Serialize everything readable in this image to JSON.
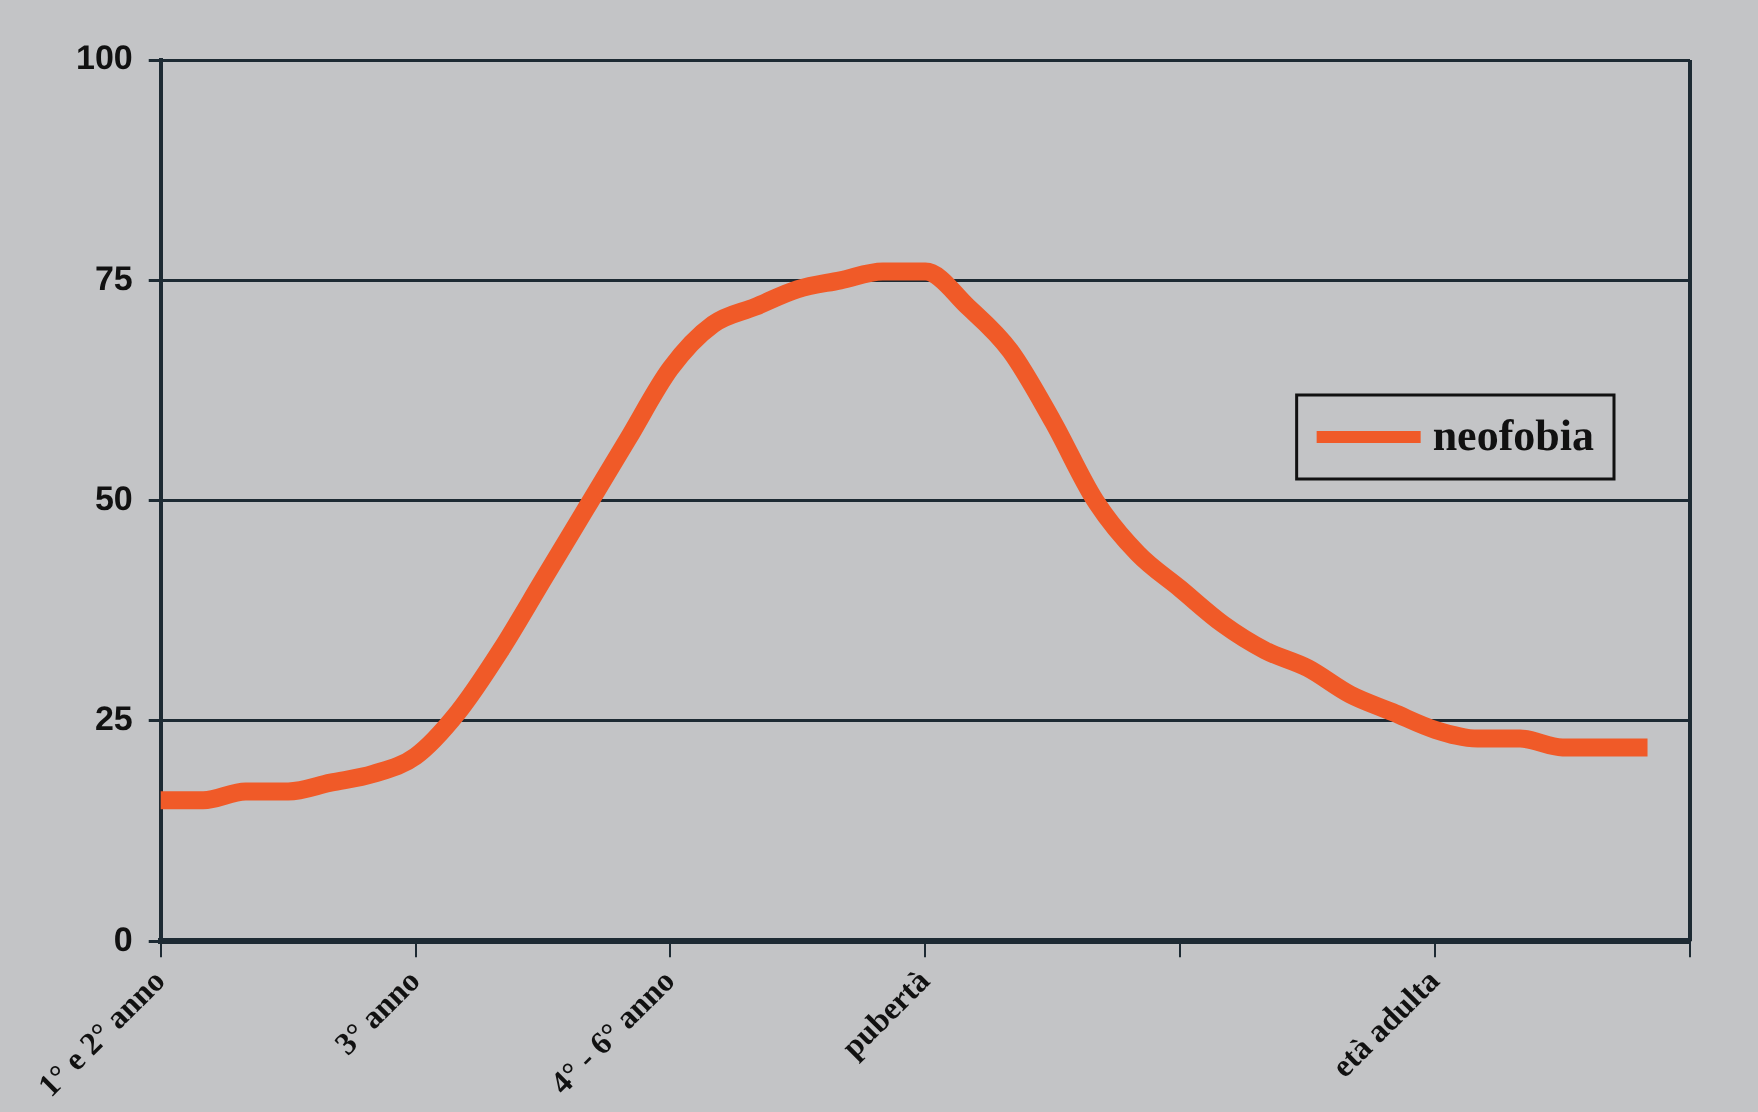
{
  "chart_data": {
    "type": "line",
    "categories": [
      "1° e 2° anno",
      null,
      null,
      null,
      null,
      null,
      "3° anno",
      null,
      null,
      null,
      null,
      null,
      "4° - 6° anno",
      null,
      null,
      null,
      null,
      null,
      "pubertà",
      null,
      null,
      null,
      null,
      null,
      null,
      null,
      null,
      null,
      null,
      null,
      "età adulta",
      null,
      null,
      null,
      null,
      null,
      null
    ],
    "series": [
      {
        "name": "neofobia",
        "color": "#f05a28",
        "values": [
          16,
          16,
          17,
          17,
          18,
          19,
          21,
          26,
          33,
          41,
          49,
          57,
          65,
          70,
          72,
          74,
          75,
          76,
          76,
          72,
          67,
          59,
          50,
          44,
          40,
          36,
          33,
          31,
          28,
          26,
          24,
          23,
          23,
          22,
          22,
          22,
          null
        ]
      }
    ],
    "ylim": [
      0,
      100
    ],
    "yticks": [
      0,
      25,
      50,
      75,
      100
    ],
    "grid": "y",
    "legend": "right",
    "marker": "none",
    "line_style": "solid"
  }
}
